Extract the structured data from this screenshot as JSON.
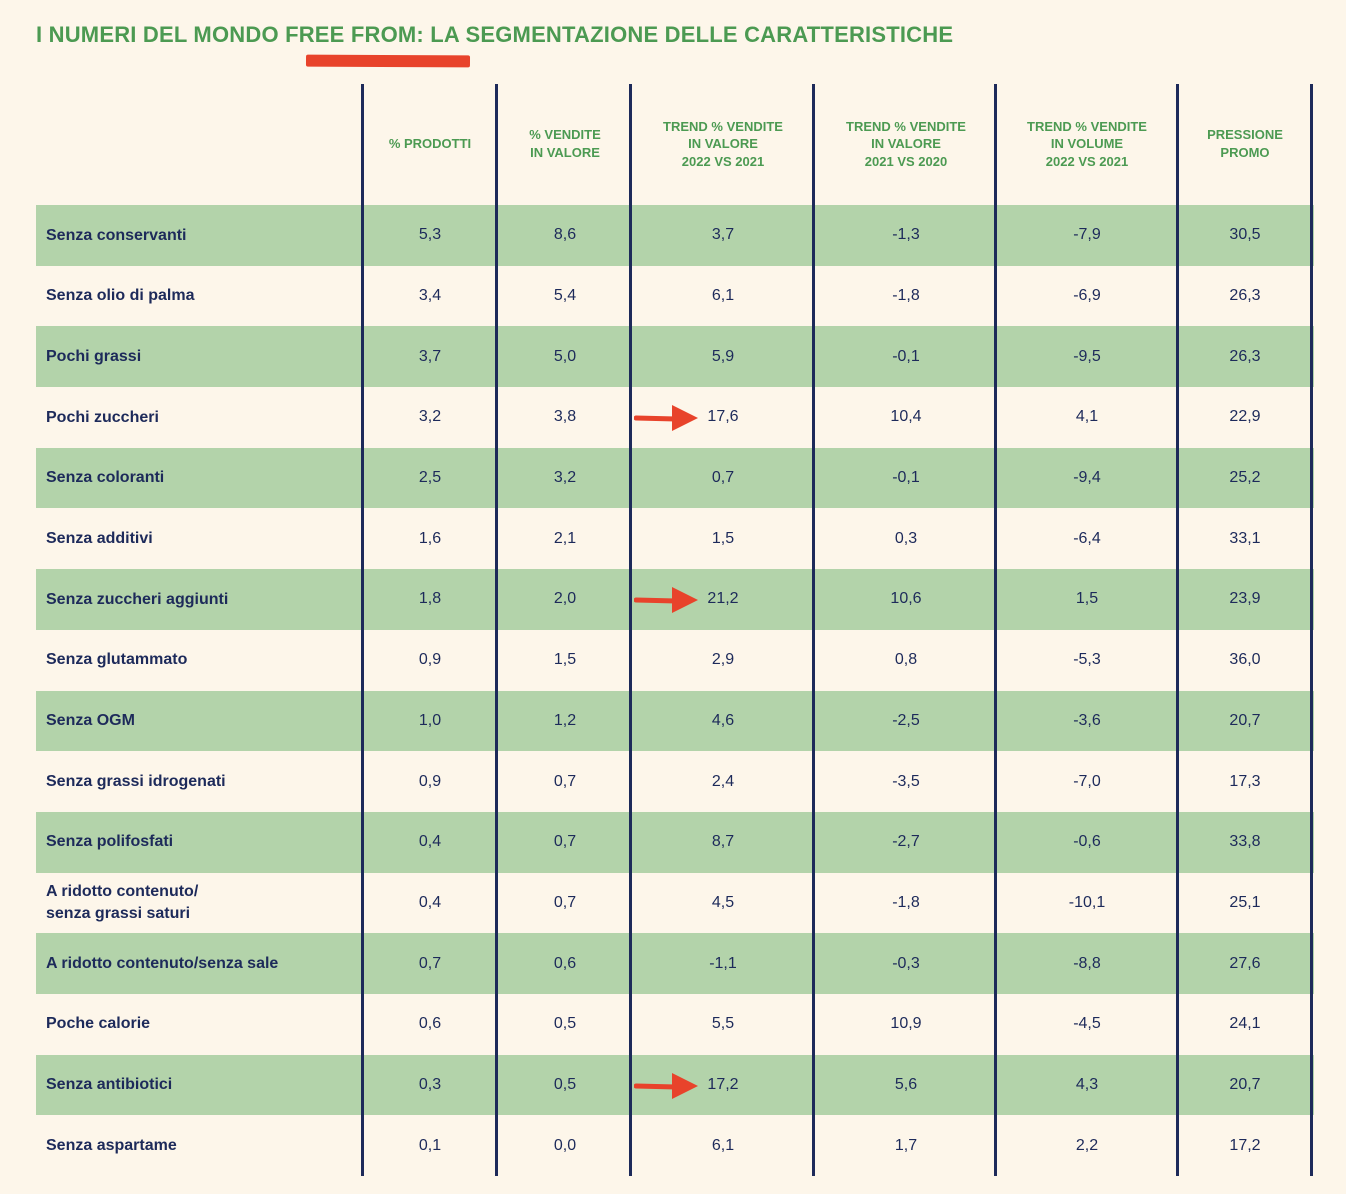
{
  "title": "I NUMERI DEL MONDO FREE FROM: LA SEGMENTAZIONE DELLE CARATTERISTICHE",
  "colors": {
    "title": "#4c9a52",
    "text": "#1d2a5a",
    "band": "#b3d3aa",
    "background": "#fdf6ea",
    "accent": "#e8432b"
  },
  "columns": [
    "% PRODOTTI",
    "% VENDITE\nIN VALORE",
    "TREND % VENDITE\nIN VALORE\n2022 VS 2021",
    "TREND % VENDITE\nIN VALORE\n2021 VS 2020",
    "TREND % VENDITE\nIN VOLUME\n2022 VS 2021",
    "PRESSIONE\nPROMO"
  ],
  "rows": [
    {
      "label": "Senza conservanti",
      "values": [
        "5,3",
        "8,6",
        "3,7",
        "-1,3",
        "-7,9",
        "30,5"
      ],
      "highlight": false
    },
    {
      "label": "Senza olio di palma",
      "values": [
        "3,4",
        "5,4",
        "6,1",
        "-1,8",
        "-6,9",
        "26,3"
      ],
      "highlight": false
    },
    {
      "label": "Pochi grassi",
      "values": [
        "3,7",
        "5,0",
        "5,9",
        "-0,1",
        "-9,5",
        "26,3"
      ],
      "highlight": false
    },
    {
      "label": "Pochi zuccheri",
      "values": [
        "3,2",
        "3,8",
        "17,6",
        "10,4",
        "4,1",
        "22,9"
      ],
      "highlight": true
    },
    {
      "label": "Senza coloranti",
      "values": [
        "2,5",
        "3,2",
        "0,7",
        "-0,1",
        "-9,4",
        "25,2"
      ],
      "highlight": false
    },
    {
      "label": "Senza additivi",
      "values": [
        "1,6",
        "2,1",
        "1,5",
        "0,3",
        "-6,4",
        "33,1"
      ],
      "highlight": false
    },
    {
      "label": "Senza zuccheri aggiunti",
      "values": [
        "1,8",
        "2,0",
        "21,2",
        "10,6",
        "1,5",
        "23,9"
      ],
      "highlight": true
    },
    {
      "label": "Senza glutammato",
      "values": [
        "0,9",
        "1,5",
        "2,9",
        "0,8",
        "-5,3",
        "36,0"
      ],
      "highlight": false
    },
    {
      "label": "Senza OGM",
      "values": [
        "1,0",
        "1,2",
        "4,6",
        "-2,5",
        "-3,6",
        "20,7"
      ],
      "highlight": false
    },
    {
      "label": "Senza grassi idrogenati",
      "values": [
        "0,9",
        "0,7",
        "2,4",
        "-3,5",
        "-7,0",
        "17,3"
      ],
      "highlight": false
    },
    {
      "label": "Senza polifosfati",
      "values": [
        "0,4",
        "0,7",
        "8,7",
        "-2,7",
        "-0,6",
        "33,8"
      ],
      "highlight": false
    },
    {
      "label": "A ridotto contenuto/\nsenza grassi saturi",
      "values": [
        "0,4",
        "0,7",
        "4,5",
        "-1,8",
        "-10,1",
        "25,1"
      ],
      "highlight": false
    },
    {
      "label": "A ridotto contenuto/senza sale",
      "values": [
        "0,7",
        "0,6",
        "-1,1",
        "-0,3",
        "-8,8",
        "27,6"
      ],
      "highlight": false
    },
    {
      "label": "Poche calorie",
      "values": [
        "0,6",
        "0,5",
        "5,5",
        "10,9",
        "-4,5",
        "24,1"
      ],
      "highlight": false
    },
    {
      "label": "Senza antibiotici",
      "values": [
        "0,3",
        "0,5",
        "17,2",
        "5,6",
        "4,3",
        "20,7"
      ],
      "highlight": true
    },
    {
      "label": "Senza aspartame",
      "values": [
        "0,1",
        "0,0",
        "6,1",
        "1,7",
        "2,2",
        "17,2"
      ],
      "highlight": false
    }
  ]
}
